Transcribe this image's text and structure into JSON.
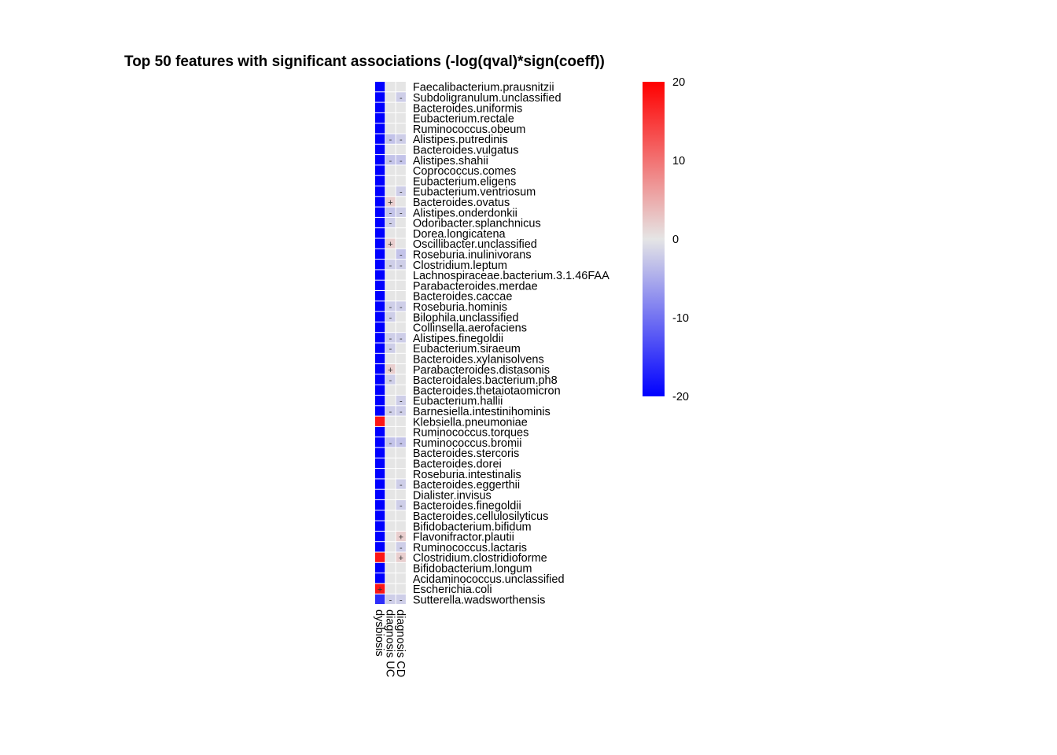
{
  "chart_data": {
    "type": "heatmap",
    "title": "Top 50 features with significant associations (-log(qval)*sign(coeff))",
    "columns": [
      "dysbiosis",
      "diagnosis UC",
      "diagnosis CD"
    ],
    "rows": [
      "Faecalibacterium.prausnitzii",
      "Subdoligranulum.unclassified",
      "Bacteroides.uniformis",
      "Eubacterium.rectale",
      "Ruminococcus.obeum",
      "Alistipes.putredinis",
      "Bacteroides.vulgatus",
      "Alistipes.shahii",
      "Coprococcus.comes",
      "Eubacterium.eligens",
      "Eubacterium.ventriosum",
      "Bacteroides.ovatus",
      "Alistipes.onderdonkii",
      "Odoribacter.splanchnicus",
      "Dorea.longicatena",
      "Oscillibacter.unclassified",
      "Roseburia.inulinivorans",
      "Clostridium.leptum",
      "Lachnospiraceae.bacterium.3.1.46FAA",
      "Parabacteroides.merdae",
      "Bacteroides.caccae",
      "Roseburia.hominis",
      "Bilophila.unclassified",
      "Collinsella.aerofaciens",
      "Alistipes.finegoldii",
      "Eubacterium.siraeum",
      "Bacteroides.xylanisolvens",
      "Parabacteroides.distasonis",
      "Bacteroidales.bacterium.ph8",
      "Bacteroides.thetaiotaomicron",
      "Eubacterium.hallii",
      "Barnesiella.intestinihominis",
      "Klebsiella.pneumoniae",
      "Ruminococcus.torques",
      "Ruminococcus.bromii",
      "Bacteroides.stercoris",
      "Bacteroides.dorei",
      "Roseburia.intestinalis",
      "Bacteroides.eggerthii",
      "Dialister.invisus",
      "Bacteroides.finegoldii",
      "Bacteroides.cellulosilyticus",
      "Bifidobacterium.bifidum",
      "Flavonifractor.plautii",
      "Ruminococcus.lactaris",
      "Clostridium.clostridioforme",
      "Bifidobacterium.longum",
      "Acidaminococcus.unclassified",
      "Escherichia.coli",
      "Sutterella.wadsworthensis"
    ],
    "values": [
      [
        -20,
        0,
        0
      ],
      [
        -20,
        0,
        -2
      ],
      [
        -20,
        0,
        0
      ],
      [
        -20,
        0,
        0
      ],
      [
        -20,
        0,
        0
      ],
      [
        -20,
        -3,
        -2
      ],
      [
        -20,
        0,
        0
      ],
      [
        -20,
        -3,
        -3
      ],
      [
        -20,
        0,
        0
      ],
      [
        -20,
        0,
        0
      ],
      [
        -20,
        0,
        -2
      ],
      [
        -20,
        2,
        0
      ],
      [
        -20,
        -3,
        -2
      ],
      [
        -20,
        -2,
        0
      ],
      [
        -20,
        0,
        0
      ],
      [
        -20,
        2,
        0
      ],
      [
        -20,
        0,
        -3
      ],
      [
        -20,
        -2,
        -2
      ],
      [
        -20,
        0,
        0
      ],
      [
        -20,
        0,
        0
      ],
      [
        -20,
        0,
        0
      ],
      [
        -20,
        -2,
        -2
      ],
      [
        -20,
        -2,
        0
      ],
      [
        -20,
        0,
        0
      ],
      [
        -20,
        -2,
        -2
      ],
      [
        -20,
        -2,
        0
      ],
      [
        -20,
        0,
        0
      ],
      [
        -20,
        2,
        0
      ],
      [
        -20,
        -2,
        0
      ],
      [
        -20,
        0,
        0
      ],
      [
        -20,
        0,
        -2
      ],
      [
        -20,
        -2,
        -2
      ],
      [
        18,
        0,
        0
      ],
      [
        -20,
        0,
        0
      ],
      [
        -20,
        -3,
        -3
      ],
      [
        -20,
        0,
        0
      ],
      [
        -20,
        0,
        0
      ],
      [
        -20,
        0,
        0
      ],
      [
        -20,
        0,
        -2
      ],
      [
        -20,
        0,
        0
      ],
      [
        -20,
        0,
        -2
      ],
      [
        -20,
        0,
        0
      ],
      [
        -20,
        0,
        0
      ],
      [
        -20,
        0,
        2
      ],
      [
        -20,
        0,
        -2
      ],
      [
        18,
        0,
        2
      ],
      [
        -20,
        0,
        0
      ],
      [
        -20,
        0,
        0
      ],
      [
        18,
        0,
        0
      ],
      [
        -16,
        -2,
        -2
      ]
    ],
    "signs": [
      [
        "",
        "",
        ""
      ],
      [
        "",
        "",
        "-"
      ],
      [
        "",
        "",
        ""
      ],
      [
        "",
        "",
        ""
      ],
      [
        "",
        "",
        ""
      ],
      [
        "",
        "-",
        "-"
      ],
      [
        "",
        "",
        ""
      ],
      [
        "",
        "-",
        "-"
      ],
      [
        "",
        "",
        ""
      ],
      [
        "",
        "",
        ""
      ],
      [
        "",
        "",
        "-"
      ],
      [
        "",
        "+",
        ""
      ],
      [
        "",
        "-",
        "-"
      ],
      [
        "",
        "-",
        ""
      ],
      [
        "",
        "",
        ""
      ],
      [
        "",
        "+",
        ""
      ],
      [
        "",
        "",
        "-"
      ],
      [
        "",
        "-",
        "-"
      ],
      [
        "",
        "",
        ""
      ],
      [
        "",
        "",
        ""
      ],
      [
        "",
        "",
        ""
      ],
      [
        "",
        "-",
        "-"
      ],
      [
        "",
        "-",
        ""
      ],
      [
        "",
        "",
        ""
      ],
      [
        "",
        "-",
        "-"
      ],
      [
        "",
        "-",
        ""
      ],
      [
        "",
        "",
        ""
      ],
      [
        "",
        "+",
        ""
      ],
      [
        "",
        "-",
        ""
      ],
      [
        "",
        "",
        ""
      ],
      [
        "",
        "",
        "-"
      ],
      [
        "",
        "-",
        "-"
      ],
      [
        "",
        "",
        ""
      ],
      [
        "",
        "",
        ""
      ],
      [
        "",
        "-",
        "-"
      ],
      [
        "",
        "",
        ""
      ],
      [
        "",
        "",
        ""
      ],
      [
        "",
        "",
        ""
      ],
      [
        "",
        "",
        "-"
      ],
      [
        "",
        "",
        ""
      ],
      [
        "",
        "",
        "-"
      ],
      [
        "",
        "",
        ""
      ],
      [
        "",
        "",
        ""
      ],
      [
        "",
        "",
        "+"
      ],
      [
        "",
        "",
        "-"
      ],
      [
        "",
        "",
        "+"
      ],
      [
        "",
        "",
        ""
      ],
      [
        "",
        "",
        ""
      ],
      [
        "+",
        "",
        ""
      ],
      [
        "",
        "-",
        "-"
      ]
    ],
    "color_scale": {
      "min": -20,
      "max": 20,
      "low": "#0000FF",
      "mid": "#E5E5E5",
      "high": "#FF0000"
    },
    "legend": {
      "ticks": [
        20,
        10,
        0,
        -10,
        -20
      ],
      "placement": "right"
    }
  }
}
